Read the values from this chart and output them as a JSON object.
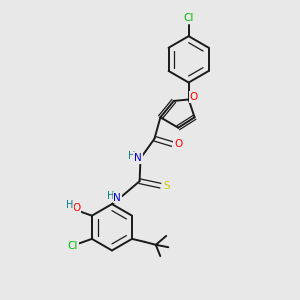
{
  "background_color": "#e8e8e8",
  "bond_color": "#1a1a1a",
  "atom_colors": {
    "O": "#ff0000",
    "N": "#0000cd",
    "S": "#cccc00",
    "Cl": "#00bb00",
    "H": "#008080",
    "C": "#1a1a1a"
  },
  "figsize": [
    3.0,
    3.0
  ],
  "dpi": 100
}
